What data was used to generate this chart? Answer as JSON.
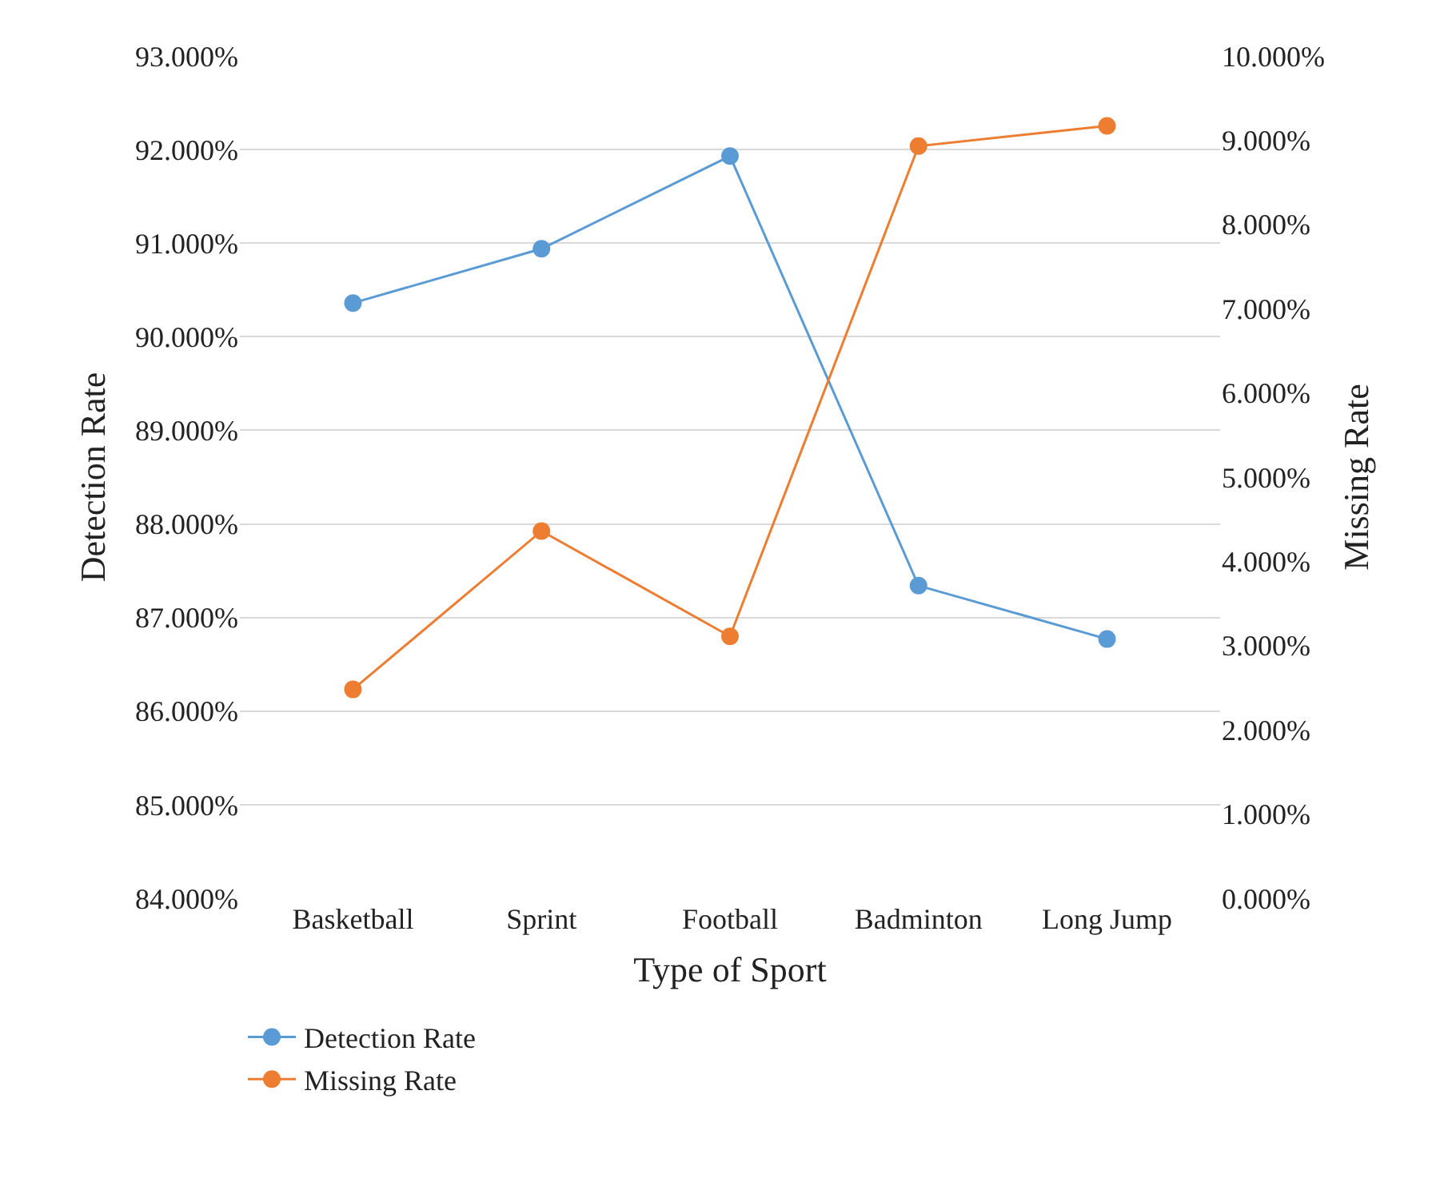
{
  "chart_data": {
    "type": "line",
    "xlabel": "Type of Sport",
    "ylabel": "Detection Rate",
    "y2label": "Missing Rate",
    "categories": [
      "Basketball",
      "Sprint",
      "Football",
      "Badminton",
      "Long Jump"
    ],
    "series": [
      {
        "name": "Detection Rate",
        "color": "#5b9bd5",
        "values": [
          90.36,
          90.94,
          91.93,
          87.34,
          86.77
        ]
      },
      {
        "name": "Missing Rate",
        "color": "#ed7d31",
        "axis": "y2",
        "values": [
          2.48,
          4.36,
          3.11,
          8.93,
          9.17
        ]
      }
    ],
    "ylim": [
      84,
      93
    ],
    "yticks": [
      {
        "value": 84,
        "label": "84.000%"
      },
      {
        "value": 85,
        "label": "85.000%"
      },
      {
        "value": 86,
        "label": "86.000%"
      },
      {
        "value": 87,
        "label": "87.000%"
      },
      {
        "value": 88,
        "label": "88.000%"
      },
      {
        "value": 89,
        "label": "89.000%"
      },
      {
        "value": 90,
        "label": "90.000%"
      },
      {
        "value": 91,
        "label": "91.000%"
      },
      {
        "value": 92,
        "label": "92.000%"
      },
      {
        "value": 93,
        "label": "93.000%"
      }
    ],
    "y2lim": [
      0,
      10
    ],
    "y2ticks": [
      {
        "value": 0,
        "label": "0.000%"
      },
      {
        "value": 1,
        "label": "1.000%"
      },
      {
        "value": 2,
        "label": "2.000%"
      },
      {
        "value": 3,
        "label": "3.000%"
      },
      {
        "value": 4,
        "label": "4.000%"
      },
      {
        "value": 5,
        "label": "5.000%"
      },
      {
        "value": 6,
        "label": "6.000%"
      },
      {
        "value": 7,
        "label": "7.000%"
      },
      {
        "value": 8,
        "label": "8.000%"
      },
      {
        "value": 9,
        "label": "9.000%"
      },
      {
        "value": 10,
        "label": "10.000%"
      }
    ],
    "grid": "y",
    "legend": "bottom left",
    "marker": "circle",
    "line_style": "solid"
  }
}
